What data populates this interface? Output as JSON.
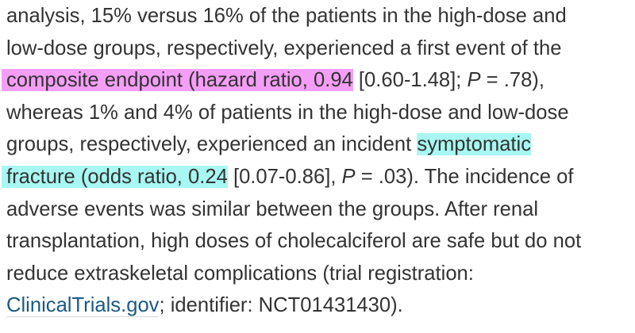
{
  "paragraph": {
    "line1": "analysis, 15% versus 16% of the patients in the high-dose and",
    "line2": "low-dose groups, respectively, experienced a first event of the",
    "line3_highlight": "composite endpoint (hazard ratio, 0.94",
    "line3_a": " [0.60-1.48]; ",
    "line3_p": "P",
    "line3_b": " = .78),",
    "line4": "whereas 1% and 4% of patients in the high-dose and low-dose",
    "line5_text": "groups, respectively, experienced an incident ",
    "line5_highlight": "symptomatic",
    "line6_highlight": "fracture (odds ratio, 0.24",
    "line6_a": " [0.07-0.86], ",
    "line6_p": "P",
    "line6_b": " = .03). The incidence of",
    "line7": "adverse events was similar between the groups. After renal",
    "line8": "transplantation, high doses of cholecalciferol are safe but do not",
    "line9": "reduce extraskeletal complications (trial registration:",
    "line10_link": "ClinicalTrials.gov",
    "line10_rest": "; identifier: NCT01431430)."
  },
  "colors": {
    "text": "#333333",
    "highlight_pink": "#f59ef7",
    "highlight_cyan": "#a8f7f2",
    "link": "#1a5a86"
  }
}
